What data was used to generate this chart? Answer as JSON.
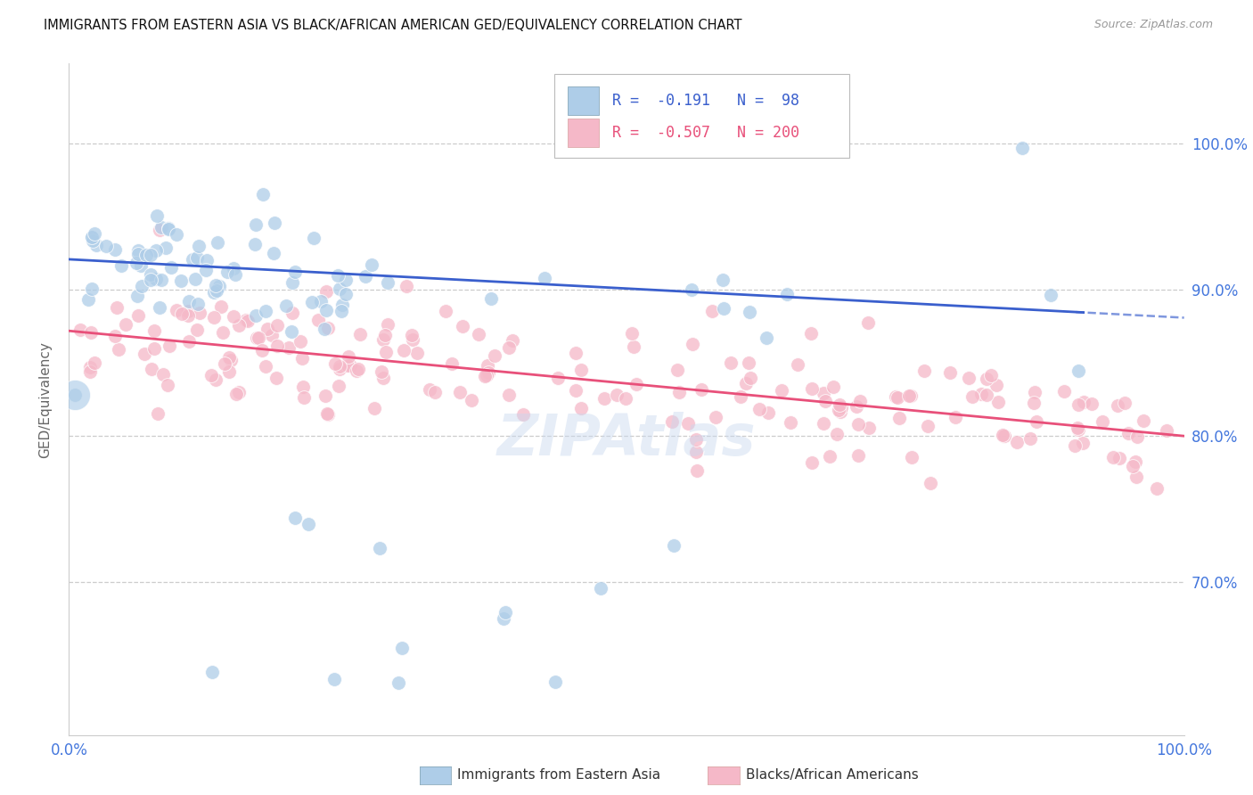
{
  "title": "IMMIGRANTS FROM EASTERN ASIA VS BLACK/AFRICAN AMERICAN GED/EQUIVALENCY CORRELATION CHART",
  "source": "Source: ZipAtlas.com",
  "ylabel": "GED/Equivalency",
  "xlim": [
    0.0,
    1.0
  ],
  "ylim": [
    0.595,
    1.055
  ],
  "yticks": [
    0.7,
    0.8,
    0.9,
    1.0
  ],
  "ytick_labels": [
    "70.0%",
    "80.0%",
    "90.0%",
    "100.0%"
  ],
  "xtick_labels": [
    "0.0%",
    "100.0%"
  ],
  "xtick_positions": [
    0.0,
    1.0
  ],
  "legend_bottom": [
    "Immigrants from Eastern Asia",
    "Blacks/African Americans"
  ],
  "blue_fill": "#AECDE8",
  "pink_fill": "#F5B8C8",
  "blue_line": "#3A5FCD",
  "pink_line": "#E8507A",
  "grid_color": "#CCCCCC",
  "axis_color": "#CCCCCC",
  "right_tick_color": "#4477DD",
  "title_color": "#111111",
  "source_color": "#999999",
  "R_blue": -0.191,
  "N_blue": 98,
  "R_pink": -0.507,
  "N_pink": 200,
  "blue_intercept": 0.921,
  "blue_slope": -0.04,
  "pink_intercept": 0.872,
  "pink_slope": -0.072,
  "watermark_color": "#C8D8EE",
  "watermark_alpha": 0.45
}
